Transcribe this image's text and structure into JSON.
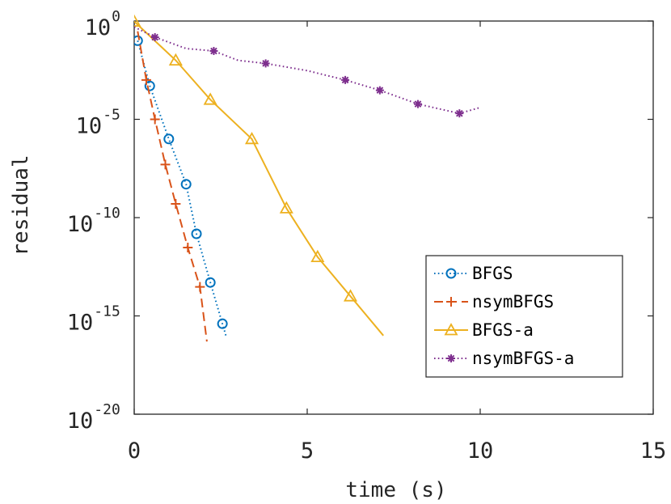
{
  "chart_data": {
    "type": "line",
    "xlabel": "time (s)",
    "ylabel": "residual",
    "xlim": [
      0,
      15
    ],
    "ylim": [
      1e-20,
      1
    ],
    "yscale": "log",
    "xticks": [
      0,
      5,
      10,
      15
    ],
    "xtick_labels": [
      "0",
      "5",
      "10",
      "15"
    ],
    "yticks": [
      1,
      1e-05,
      1e-10,
      1e-15,
      1e-20
    ],
    "ytick_base": "10",
    "ytick_exponents": [
      "0",
      "-5",
      "-10",
      "-15",
      "-20"
    ],
    "grid": false,
    "legend_position": "lower-right",
    "series": [
      {
        "name": "BFGS",
        "color": "#0072BD",
        "line_style": "dotted",
        "marker": "circle",
        "x": [
          0.1,
          0.45,
          1.0,
          1.5,
          1.8,
          2.2,
          2.55,
          2.65
        ],
        "y": [
          0.1,
          0.0005,
          1e-06,
          5e-09,
          1.5e-11,
          5e-14,
          4e-16,
          1e-16
        ],
        "marker_x": [
          0.1,
          0.45,
          1.0,
          1.5,
          1.8,
          2.2,
          2.55
        ],
        "marker_y": [
          0.1,
          0.0005,
          1e-06,
          5e-09,
          1.5e-11,
          5e-14,
          4e-16
        ]
      },
      {
        "name": "nsymBFGS",
        "color": "#D95319",
        "line_style": "dashed",
        "marker": "plus",
        "x": [
          0.1,
          0.35,
          0.6,
          0.9,
          1.2,
          1.55,
          1.9,
          2.1
        ],
        "y": [
          0.3,
          0.001,
          1e-05,
          5e-08,
          5e-10,
          3e-12,
          3e-14,
          5e-17
        ],
        "marker_x": [
          0.35,
          0.6,
          0.9,
          1.2,
          1.55,
          1.9
        ],
        "marker_y": [
          0.001,
          1e-05,
          5e-08,
          5e-10,
          3e-12,
          3e-14
        ]
      },
      {
        "name": "BFGS-a",
        "color": "#EDB120",
        "line_style": "solid",
        "marker": "triangle",
        "x": [
          0.0,
          1.2,
          2.2,
          3.4,
          4.4,
          5.3,
          6.25,
          7.2
        ],
        "y": [
          0.95,
          0.01,
          0.0001,
          1e-06,
          3e-10,
          1e-12,
          1e-14,
          1e-16
        ],
        "marker_x": [
          0.0,
          1.2,
          2.2,
          3.4,
          4.4,
          5.3,
          6.25
        ],
        "marker_y": [
          0.95,
          0.01,
          0.0001,
          1e-06,
          3e-10,
          1e-12,
          1e-14
        ]
      },
      {
        "name": "nsymBFGS-a",
        "color": "#7E2F8E",
        "line_style": "dotted",
        "marker": "asterisk",
        "x": [
          0.0,
          0.6,
          1.5,
          2.3,
          3.0,
          3.8,
          5.0,
          6.1,
          7.1,
          8.2,
          9.4,
          10.0
        ],
        "y": [
          0.5,
          0.15,
          0.04,
          0.03,
          0.01,
          0.007,
          0.003,
          0.001,
          0.0003,
          6e-05,
          2e-05,
          4e-05
        ],
        "marker_x": [
          0.6,
          2.3,
          3.8,
          6.1,
          7.1,
          8.2,
          9.4
        ],
        "marker_y": [
          0.15,
          0.03,
          0.007,
          0.001,
          0.0003,
          6e-05,
          2e-05
        ]
      }
    ]
  }
}
